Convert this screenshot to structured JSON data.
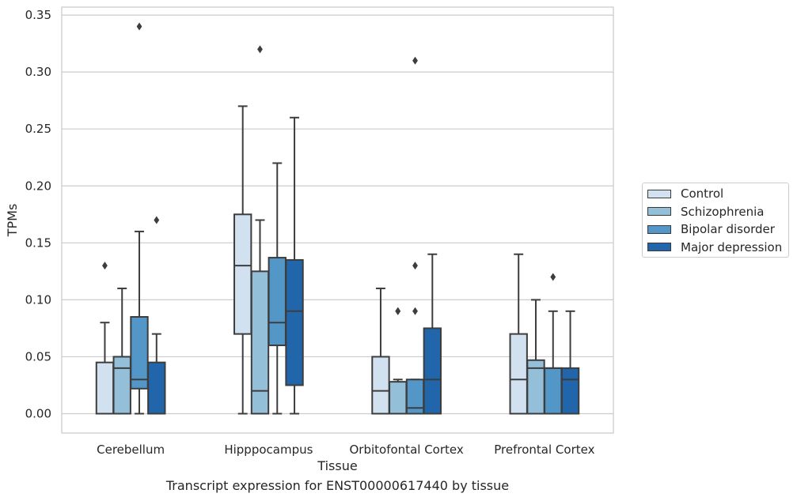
{
  "caption": "Transcript expression for ENST00000617440 by tissue",
  "chart_data": {
    "type": "box",
    "title": "",
    "xlabel": "Tissue",
    "ylabel": "TPMs",
    "ylim": [
      -0.017,
      0.357
    ],
    "yticks": [
      "0.00",
      "0.05",
      "0.10",
      "0.15",
      "0.20",
      "0.25",
      "0.30",
      "0.35"
    ],
    "grid": "horizontal",
    "legend_position": "right, outside plot",
    "categories": [
      "Cerebellum",
      "Hipppocampus",
      "Orbitofontal Cortex",
      "Prefrontal Cortex"
    ],
    "series": [
      {
        "name": "Control",
        "color": "#d1e1f0",
        "boxes": [
          {
            "whislo": 0.0,
            "q1": 0.0,
            "med": 0.0,
            "q3": 0.045,
            "whishi": 0.08,
            "fliers": [
              0.13
            ]
          },
          {
            "whislo": 0.0,
            "q1": 0.07,
            "med": 0.13,
            "q3": 0.175,
            "whishi": 0.27,
            "fliers": []
          },
          {
            "whislo": 0.0,
            "q1": 0.0,
            "med": 0.02,
            "q3": 0.05,
            "whishi": 0.11,
            "fliers": []
          },
          {
            "whislo": 0.0,
            "q1": 0.0,
            "med": 0.03,
            "q3": 0.07,
            "whishi": 0.14,
            "fliers": []
          }
        ]
      },
      {
        "name": "Schizophrenia",
        "color": "#94bfd9",
        "boxes": [
          {
            "whislo": 0.0,
            "q1": 0.0,
            "med": 0.04,
            "q3": 0.05,
            "whishi": 0.11,
            "fliers": []
          },
          {
            "whislo": 0.0,
            "q1": 0.0,
            "med": 0.02,
            "q3": 0.125,
            "whishi": 0.17,
            "fliers": [
              0.32
            ]
          },
          {
            "whislo": 0.0,
            "q1": 0.0,
            "med": 0.0,
            "q3": 0.028,
            "whishi": 0.03,
            "fliers": [
              0.09,
              0.09
            ]
          },
          {
            "whislo": 0.0,
            "q1": 0.0,
            "med": 0.04,
            "q3": 0.047,
            "whishi": 0.1,
            "fliers": []
          }
        ]
      },
      {
        "name": "Bipolar disorder",
        "color": "#5297c8",
        "boxes": [
          {
            "whislo": 0.0,
            "q1": 0.022,
            "med": 0.03,
            "q3": 0.085,
            "whishi": 0.16,
            "fliers": [
              0.34
            ]
          },
          {
            "whislo": 0.0,
            "q1": 0.06,
            "med": 0.08,
            "q3": 0.137,
            "whishi": 0.22,
            "fliers": []
          },
          {
            "whislo": 0.0,
            "q1": 0.0,
            "med": 0.005,
            "q3": 0.03,
            "whishi": 0.03,
            "fliers": [
              0.13,
              0.09,
              0.31
            ]
          },
          {
            "whislo": 0.0,
            "q1": 0.0,
            "med": 0.04,
            "q3": 0.04,
            "whishi": 0.09,
            "fliers": [
              0.12
            ]
          }
        ]
      },
      {
        "name": "Major depression",
        "color": "#2166ab",
        "boxes": [
          {
            "whislo": 0.0,
            "q1": 0.0,
            "med": 0.0,
            "q3": 0.045,
            "whishi": 0.07,
            "fliers": [
              0.17
            ]
          },
          {
            "whislo": 0.0,
            "q1": 0.025,
            "med": 0.09,
            "q3": 0.135,
            "whishi": 0.26,
            "fliers": []
          },
          {
            "whislo": 0.0,
            "q1": 0.0,
            "med": 0.03,
            "q3": 0.075,
            "whishi": 0.14,
            "fliers": []
          },
          {
            "whislo": 0.0,
            "q1": 0.0,
            "med": 0.03,
            "q3": 0.04,
            "whishi": 0.09,
            "fliers": []
          }
        ]
      }
    ]
  }
}
